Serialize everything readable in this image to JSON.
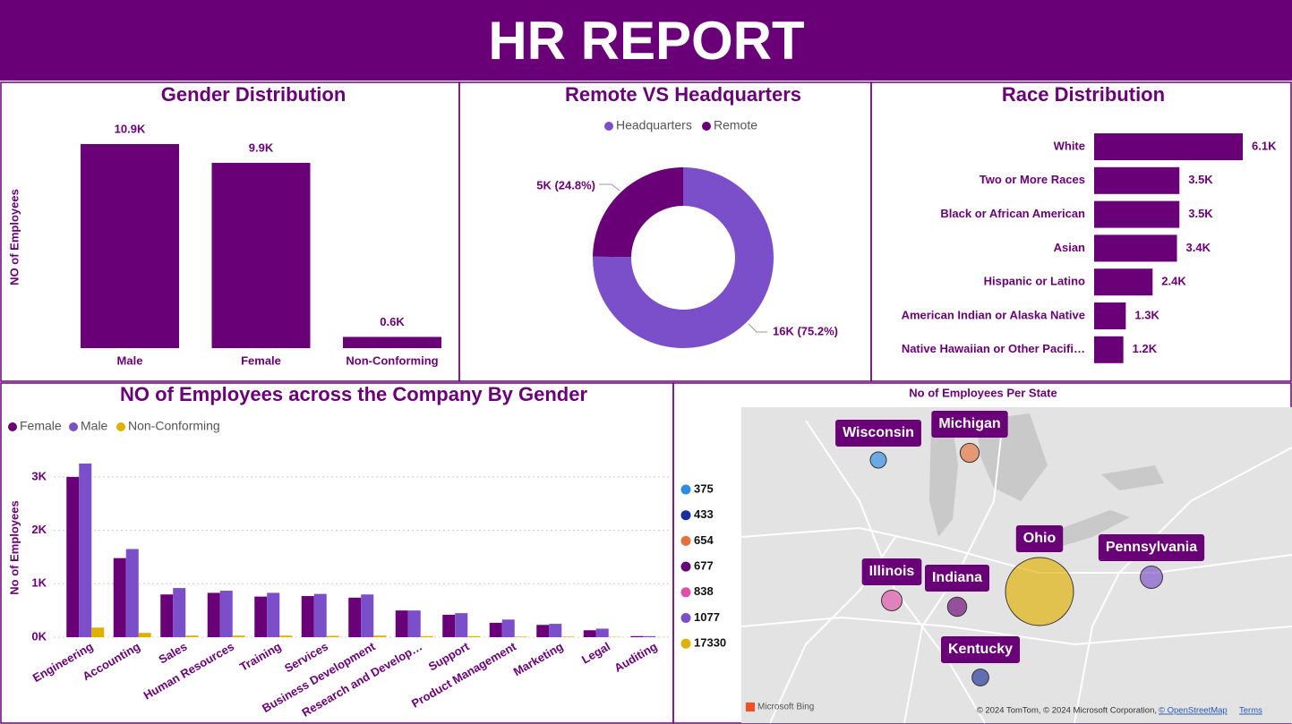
{
  "title": "HR REPORT",
  "chart_data": [
    {
      "type": "bar",
      "title": "Gender Distribution",
      "y_label": "NO of Employees",
      "categories": [
        "Male",
        "Female",
        "Non-Conforming"
      ],
      "values": [
        10900,
        9900,
        600
      ],
      "value_labels": [
        "10.9K",
        "9.9K",
        "0.6K"
      ],
      "color": "#6a0078"
    },
    {
      "type": "donut",
      "title": "Remote VS Headquarters",
      "categories": [
        "Headquarters",
        "Remote"
      ],
      "values": [
        75.2,
        24.8
      ],
      "value_labels": [
        "16K (75.2%)",
        "5K (24.8%)"
      ],
      "colors": [
        "#7b4fc9",
        "#6a0078"
      ]
    },
    {
      "type": "hbar",
      "title": "Race Distribution",
      "categories": [
        "White",
        "Two or More Races",
        "Black or African American",
        "Asian",
        "Hispanic or Latino",
        "American Indian or Alaska Native",
        "Native Hawaiian or Other Pacifi…"
      ],
      "values": [
        6100,
        3500,
        3500,
        3400,
        2400,
        1300,
        1200
      ],
      "value_labels": [
        "6.1K",
        "3.5K",
        "3.5K",
        "3.4K",
        "2.4K",
        "1.3K",
        "1.2K"
      ],
      "color": "#6a0078"
    },
    {
      "type": "grouped_bar",
      "title": "NO of Employees across the Company By Gender",
      "y_label": "No of Employees",
      "categories": [
        "Engineering",
        "Accounting",
        "Sales",
        "Human Resources",
        "Training",
        "Services",
        "Business Development",
        "Research and Develop…",
        "Support",
        "Product Management",
        "Marketing",
        "Legal",
        "Auditing"
      ],
      "series": [
        {
          "name": "Female",
          "color": "#6a0078",
          "values": [
            3000,
            1480,
            800,
            830,
            760,
            770,
            740,
            500,
            420,
            270,
            230,
            130,
            20
          ]
        },
        {
          "name": "Male",
          "color": "#7b4fc9",
          "values": [
            3250,
            1650,
            920,
            870,
            830,
            810,
            800,
            500,
            450,
            330,
            250,
            160,
            20
          ]
        },
        {
          "name": "Non-Conforming",
          "color": "#e0b000",
          "values": [
            180,
            80,
            30,
            30,
            30,
            25,
            30,
            20,
            20,
            10,
            10,
            5,
            2
          ]
        }
      ],
      "ylim": [
        0,
        3400
      ],
      "yticks": [
        {
          "value": 0,
          "label": "0K"
        },
        {
          "value": 1000,
          "label": "1K"
        },
        {
          "value": 2000,
          "label": "2K"
        },
        {
          "value": 3000,
          "label": "3K"
        }
      ],
      "grid": true
    },
    {
      "type": "map",
      "title": "No of Employees Per State",
      "categories": [
        "Wisconsin",
        "Kentucky",
        "Michigan",
        "Indiana",
        "Illinois",
        "Pennsylvania",
        "Ohio"
      ],
      "values": [
        375,
        433,
        654,
        677,
        838,
        1077,
        17330
      ],
      "colors": [
        "#2b8be6",
        "#1c2f9c",
        "#e8703a",
        "#6a0078",
        "#e24fa8",
        "#7b4fc9",
        "#e0b000"
      ],
      "logo": "Microsoft Bing",
      "attribution": "© 2024 TomTom, © 2024 Microsoft Corporation,",
      "attribution_link": "© OpenStreetMap",
      "terms": "Terms"
    }
  ]
}
